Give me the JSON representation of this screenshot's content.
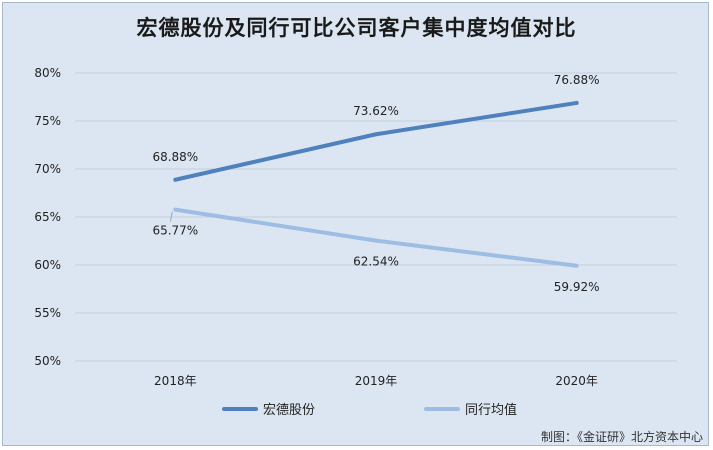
{
  "chart_data": {
    "type": "line",
    "title": "宏德股份及同行可比公司客户集中度均值对比",
    "categories": [
      "2018年",
      "2019年",
      "2020年"
    ],
    "series": [
      {
        "name": "宏德股份",
        "values": [
          68.88,
          73.62,
          76.88
        ],
        "labels": [
          "68.88%",
          "73.62%",
          "76.88%"
        ],
        "color": "#4f81bd"
      },
      {
        "name": "同行均值",
        "values": [
          65.77,
          62.54,
          59.92
        ],
        "labels": [
          "65.77%",
          "62.54%",
          "59.92%"
        ],
        "color": "#9dbde4"
      }
    ],
    "ylim": [
      50,
      80
    ],
    "yticks": [
      50,
      55,
      60,
      65,
      70,
      75,
      80
    ],
    "ytick_labels": [
      "50%",
      "55%",
      "60%",
      "65%",
      "70%",
      "75%",
      "80%"
    ],
    "grid": true,
    "legend_position": "bottom",
    "xlabel": "",
    "ylabel": ""
  },
  "footer": {
    "credit": "制图：《金证研》北方资本中心"
  }
}
